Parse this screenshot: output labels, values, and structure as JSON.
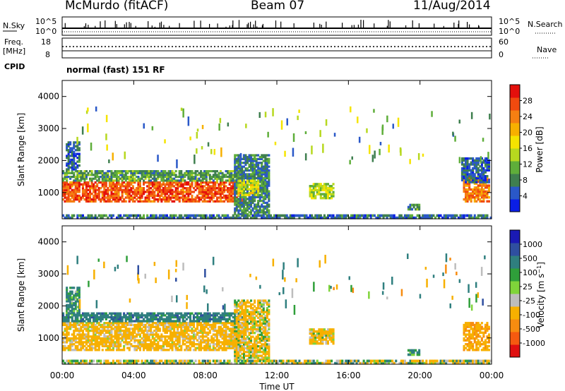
{
  "header": {
    "station": "McMurdo (fitACF)",
    "beam": "Beam 07",
    "date": "11/Aug/2014"
  },
  "top_panels": {
    "nsky_label": "N.Sky",
    "nsearch_label": "N.Search",
    "count_ticks_left": [
      "10^5",
      "10^0"
    ],
    "count_ticks_right": [
      "10^5",
      "10^0"
    ],
    "freq_label": "Freq.",
    "freq_unit": "[MHz]",
    "freq_ticks": [
      "18",
      "8"
    ],
    "nave_label": "Nave",
    "nave_ticks": [
      "60",
      "0"
    ],
    "cpid_label": "CPID",
    "cpid_value": "normal (fast) 151 RF"
  },
  "colors": {
    "power_scale": [
      "#0a1ee6",
      "#2a58c8",
      "#3f7f4f",
      "#5fae3a",
      "#b7d81f",
      "#f5e400",
      "#f7b000",
      "#f57f12",
      "#f04a0f",
      "#e4100c",
      "#ff2020"
    ],
    "velocity_scale": [
      "#e01010",
      "#f55a10",
      "#f78c10",
      "#f7b000",
      "#bdbdbd",
      "#7fd43a",
      "#2f9f3a",
      "#2f7f7f",
      "#2f4fa0",
      "#1a1ab4"
    ]
  },
  "chart_data": [
    {
      "type": "heatmap",
      "title": "",
      "xlabel": "Time UT",
      "ylabel": "Slant Range [km]",
      "colorbar_label": "Power [dB]",
      "x_tick_labels": [
        "00:00",
        "04:00",
        "08:00",
        "12:00",
        "16:00",
        "20:00",
        "00:00"
      ],
      "xlim": [
        "00:00",
        "24:00"
      ],
      "y_tick_labels": [
        "1000",
        "2000",
        "3000",
        "4000"
      ],
      "ylim": [
        180,
        4500
      ],
      "colorbar_ticks": [
        "4",
        "8",
        "12",
        "16",
        "20",
        "24",
        "28"
      ],
      "colorbar_range": [
        0,
        32
      ],
      "regions": [
        {
          "t0": 0.0,
          "t1": 10.2,
          "r0": 700,
          "r1": 1350,
          "value": 24
        },
        {
          "t0": 0.0,
          "t1": 10.2,
          "r0": 1350,
          "r1": 1700,
          "value": 9
        },
        {
          "t0": 0.2,
          "t1": 1.0,
          "r0": 1700,
          "r1": 2600,
          "value": 5
        },
        {
          "t0": 9.6,
          "t1": 11.6,
          "r0": 300,
          "r1": 2200,
          "value": 7
        },
        {
          "t0": 9.8,
          "t1": 11.0,
          "r0": 900,
          "r1": 1400,
          "value": 14
        },
        {
          "t0": 13.8,
          "t1": 15.2,
          "r0": 800,
          "r1": 1300,
          "value": 13
        },
        {
          "t0": 19.3,
          "t1": 20.0,
          "r0": 450,
          "r1": 650,
          "value": 8
        },
        {
          "t0": 22.4,
          "t1": 23.9,
          "r0": 700,
          "r1": 1500,
          "value": 22
        },
        {
          "t0": 22.3,
          "t1": 23.9,
          "r0": 1300,
          "r1": 2100,
          "value": 5
        },
        {
          "t0": 0.0,
          "t1": 24.0,
          "r0": 180,
          "r1": 320,
          "value": 6
        }
      ]
    },
    {
      "type": "heatmap",
      "title": "",
      "xlabel": "Time UT",
      "ylabel": "Slant Range [km]",
      "colorbar_label": "Velocity [m s^-1]",
      "x_tick_labels": [
        "00:00",
        "04:00",
        "08:00",
        "12:00",
        "16:00",
        "20:00",
        "00:00"
      ],
      "xlim": [
        "00:00",
        "24:00"
      ],
      "y_tick_labels": [
        "1000",
        "2000",
        "3000",
        "4000"
      ],
      "ylim": [
        180,
        4500
      ],
      "colorbar_ticks": [
        "-1000",
        "-500",
        "-100",
        "-25",
        "25",
        "100",
        "500",
        "1000"
      ],
      "regions": [
        {
          "t0": 0.0,
          "t1": 10.2,
          "r0": 600,
          "r1": 1500,
          "value": -250
        },
        {
          "t0": 0.0,
          "t1": 10.2,
          "r0": 1500,
          "r1": 1800,
          "value": 300
        },
        {
          "t0": 0.2,
          "t1": 1.0,
          "r0": 1700,
          "r1": 2600,
          "value": 200
        },
        {
          "t0": 9.6,
          "t1": 11.6,
          "r0": 300,
          "r1": 2200,
          "value": -150
        },
        {
          "t0": 13.8,
          "t1": 15.2,
          "r0": 800,
          "r1": 1300,
          "value": -200
        },
        {
          "t0": 19.3,
          "t1": 20.0,
          "r0": 450,
          "r1": 650,
          "value": 150
        },
        {
          "t0": 22.4,
          "t1": 23.9,
          "r0": 600,
          "r1": 1500,
          "value": -400
        },
        {
          "t0": 0.0,
          "t1": 24.0,
          "r0": 180,
          "r1": 320,
          "value": -50
        }
      ]
    }
  ]
}
